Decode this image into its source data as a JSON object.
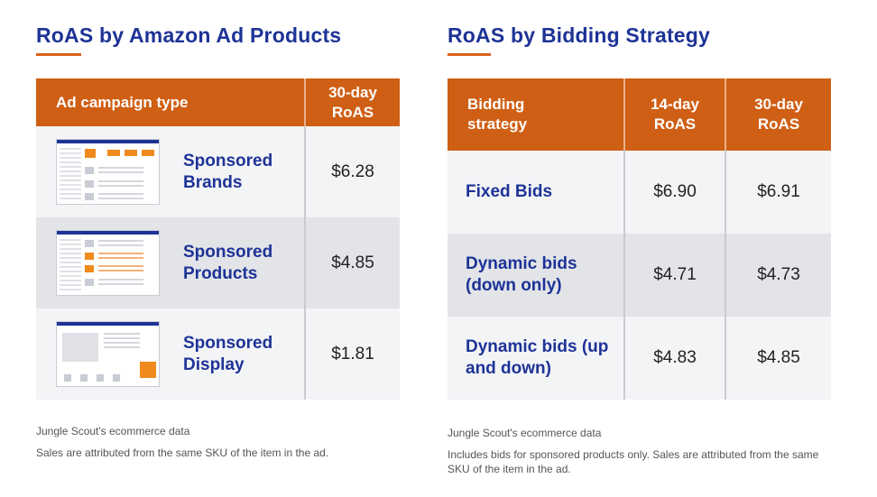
{
  "left_panel": {
    "title": "RoAS by Amazon Ad Products",
    "headers": [
      "Ad campaign type",
      "30-day RoAS"
    ],
    "rows": [
      {
        "name": "Sponsored Brands",
        "roas_30": "$6.28"
      },
      {
        "name": "Sponsored Products",
        "roas_30": "$4.85"
      },
      {
        "name": "Sponsored Display",
        "roas_30": "$1.81"
      }
    ],
    "source": "Jungle Scout's ecommerce data",
    "note": "Sales are attributed from the same SKU of the item in the ad."
  },
  "right_panel": {
    "title": "RoAS by Bidding Strategy",
    "headers": [
      "Bidding strategy",
      "14-day RoAS",
      "30-day RoAS"
    ],
    "rows": [
      {
        "name": "Fixed Bids",
        "roas_14": "$6.90",
        "roas_30": "$6.91"
      },
      {
        "name": "Dynamic bids (down only)",
        "roas_14": "$4.71",
        "roas_30": "$4.73"
      },
      {
        "name": "Dynamic bids (up and down)",
        "roas_14": "$4.83",
        "roas_30": "$4.85"
      }
    ],
    "source": "Jungle Scout's ecommerce data",
    "note": "Includes bids for sponsored products only. Sales are attributed from the same SKU of the item in the ad."
  },
  "colors": {
    "header_bg": "#cf5f14",
    "title_text": "#1e3396",
    "accent_orange": "#f08a1c",
    "row_light": "#f3f4f6",
    "row_dark": "#e2e4e8"
  },
  "chart_data": [
    {
      "type": "table",
      "title": "RoAS by Amazon Ad Products",
      "columns": [
        "Ad campaign type",
        "30-day RoAS"
      ],
      "rows": [
        [
          "Sponsored Brands",
          6.28
        ],
        [
          "Sponsored Products",
          4.85
        ],
        [
          "Sponsored Display",
          1.81
        ]
      ]
    },
    {
      "type": "table",
      "title": "RoAS by Bidding Strategy",
      "columns": [
        "Bidding strategy",
        "14-day RoAS",
        "30-day RoAS"
      ],
      "rows": [
        [
          "Fixed Bids",
          6.9,
          6.91
        ],
        [
          "Dynamic bids (down only)",
          4.71,
          4.73
        ],
        [
          "Dynamic bids (up and down)",
          4.83,
          4.85
        ]
      ]
    }
  ]
}
